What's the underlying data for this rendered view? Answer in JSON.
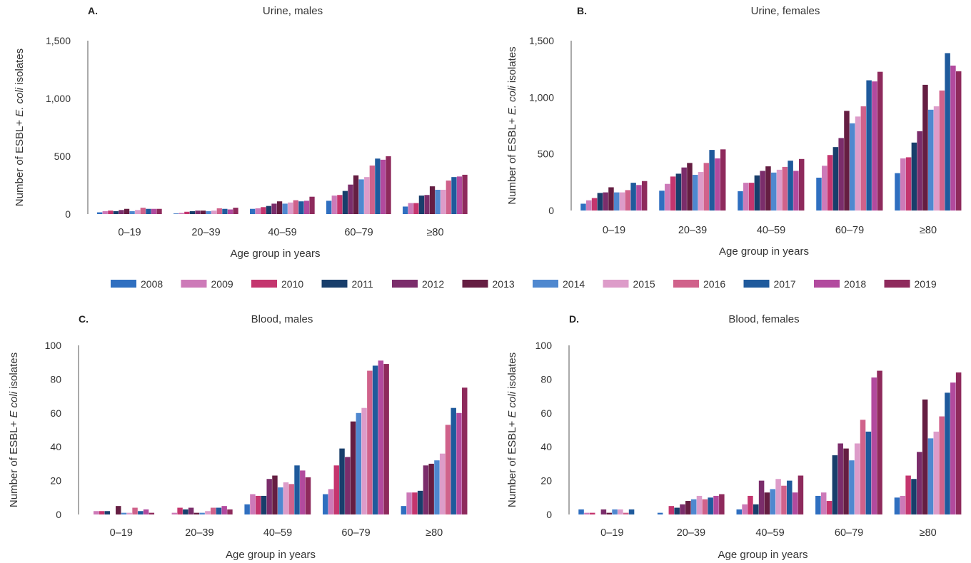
{
  "years": [
    "2008",
    "2009",
    "2010",
    "2011",
    "2012",
    "2013",
    "2014",
    "2015",
    "2016",
    "2017",
    "2018",
    "2019"
  ],
  "colors": [
    "#2f6fc0",
    "#cd7ab8",
    "#c4356e",
    "#183e6b",
    "#7b2d6b",
    "#651e42",
    "#4f88cf",
    "#dd9cc9",
    "#d0628b",
    "#1f5a9c",
    "#b24a9e",
    "#8e2a5c"
  ],
  "categories": [
    "0–19",
    "20–39",
    "40–59",
    "60–79",
    "≥80"
  ],
  "xlabel": "Age group in years",
  "ylabel_prefix": "Number of ESBL+ ",
  "ylabel_suffix": " isolates",
  "ylabel_italic_urine": "E. coli",
  "ylabel_italic_blood": "E coli",
  "chart_data": [
    {
      "type": "bar",
      "letter": "A.",
      "title": "Urine, males",
      "ylim": [
        0,
        1500
      ],
      "yticks": [
        0,
        500,
        1000,
        1500
      ],
      "ytick_labels": [
        "0",
        "500",
        "1,000",
        "1,500"
      ],
      "categories": [
        "0–19",
        "20–39",
        "40–59",
        "60–79",
        "≥80"
      ],
      "series_by_category": [
        [
          15,
          25,
          30,
          25,
          35,
          45,
          25,
          35,
          55,
          45,
          45,
          45
        ],
        [
          5,
          10,
          20,
          25,
          30,
          30,
          25,
          30,
          50,
          45,
          40,
          55
        ],
        [
          45,
          50,
          60,
          70,
          90,
          110,
          90,
          100,
          120,
          110,
          115,
          150
        ],
        [
          115,
          160,
          165,
          200,
          255,
          335,
          300,
          320,
          420,
          480,
          470,
          500
        ],
        [
          65,
          95,
          95,
          160,
          165,
          240,
          210,
          210,
          290,
          320,
          325,
          340
        ]
      ]
    },
    {
      "type": "bar",
      "letter": "B.",
      "title": "Urine, females",
      "ylim": [
        0,
        1500
      ],
      "yticks": [
        0,
        500,
        1000,
        1500
      ],
      "ytick_labels": [
        "0",
        "500",
        "1,000",
        "1,500"
      ],
      "categories": [
        "0–19",
        "20–39",
        "40–59",
        "60–79",
        "≥80"
      ],
      "series_by_category": [
        [
          60,
          90,
          110,
          155,
          160,
          205,
          160,
          160,
          180,
          245,
          225,
          260
        ],
        [
          175,
          235,
          300,
          325,
          380,
          420,
          315,
          340,
          420,
          535,
          460,
          540
        ],
        [
          170,
          245,
          245,
          310,
          350,
          390,
          335,
          360,
          385,
          440,
          350,
          455
        ],
        [
          290,
          395,
          490,
          560,
          640,
          880,
          770,
          830,
          920,
          1150,
          1140,
          1225
        ],
        [
          330,
          460,
          470,
          600,
          700,
          1110,
          890,
          920,
          1060,
          1390,
          1280,
          1230
        ]
      ]
    },
    {
      "type": "bar",
      "letter": "C.",
      "title": "Blood, males",
      "ylim": [
        0,
        100
      ],
      "yticks": [
        0,
        20,
        40,
        60,
        80,
        100
      ],
      "ytick_labels": [
        "0",
        "20",
        "40",
        "60",
        "80",
        "100"
      ],
      "categories": [
        "0–19",
        "20–39",
        "40–59",
        "60–79",
        "≥80"
      ],
      "series_by_category": [
        [
          0,
          2,
          2,
          2,
          0,
          5,
          1,
          1,
          4,
          2,
          3,
          1
        ],
        [
          0,
          1,
          4,
          3,
          4,
          1,
          1,
          2,
          4,
          4,
          5,
          3
        ],
        [
          6,
          12,
          11,
          11,
          21,
          23,
          16,
          19,
          18,
          29,
          26,
          22
        ],
        [
          12,
          15,
          29,
          39,
          34,
          55,
          60,
          63,
          85,
          88,
          91,
          89
        ],
        [
          5,
          13,
          13,
          14,
          29,
          30,
          32,
          36,
          53,
          63,
          60,
          75
        ]
      ]
    },
    {
      "type": "bar",
      "letter": "D.",
      "title": "Blood, females",
      "ylim": [
        0,
        100
      ],
      "yticks": [
        0,
        20,
        40,
        60,
        80,
        100
      ],
      "ytick_labels": [
        "0",
        "20",
        "40",
        "60",
        "80",
        "100"
      ],
      "categories": [
        "0–19",
        "20–39",
        "40–59",
        "60–79",
        "≥80"
      ],
      "series_by_category": [
        [
          3,
          1,
          1,
          0,
          3,
          1,
          3,
          3,
          1,
          3,
          0,
          0
        ],
        [
          1,
          0,
          5,
          4,
          6,
          8,
          9,
          11,
          9,
          10,
          11,
          12
        ],
        [
          3,
          6,
          11,
          6,
          20,
          13,
          15,
          21,
          17,
          20,
          13,
          23
        ],
        [
          11,
          13,
          8,
          35,
          42,
          39,
          32,
          42,
          56,
          49,
          81,
          85
        ],
        [
          10,
          11,
          23,
          21,
          37,
          68,
          45,
          49,
          58,
          72,
          78,
          84
        ]
      ]
    }
  ]
}
